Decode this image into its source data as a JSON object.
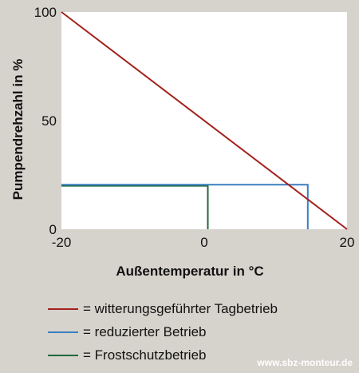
{
  "chart_data": {
    "type": "line",
    "xlabel": "Außentemperatur in °C",
    "ylabel": "Pumpendrehzahl in %",
    "xlim": [
      -20,
      20
    ],
    "ylim": [
      0,
      100
    ],
    "xticks": [
      -20,
      0,
      20
    ],
    "yticks": [
      0,
      50,
      100
    ],
    "xtick_labels": [
      "-20",
      "0",
      "20"
    ],
    "ytick_labels": [
      "0",
      "50",
      "100"
    ],
    "grid": false,
    "series": [
      {
        "name": "witterungsgeführter Tagbetrieb",
        "color": "#a3201c",
        "x": [
          -20,
          20
        ],
        "y": [
          100,
          0
        ]
      },
      {
        "name": "reduzierter Betrieb",
        "color": "#3a7fbf",
        "x": [
          -20,
          14.5,
          14.5
        ],
        "y": [
          20.5,
          20.5,
          0
        ]
      },
      {
        "name": "Frostschutzbetrieb",
        "color": "#1f6a3a",
        "x": [
          -20,
          0.5,
          0.5
        ],
        "y": [
          20,
          20,
          0
        ]
      }
    ]
  },
  "legend": {
    "prefix": "= ",
    "items": [
      {
        "label": "witterungsgeführter Tagbetrieb",
        "color": "#a3201c"
      },
      {
        "label": "reduzierter Betrieb",
        "color": "#3a7fbf"
      },
      {
        "label": "Frostschutzbetrieb",
        "color": "#1f6a3a"
      }
    ]
  },
  "footer": {
    "text": "www.sbz-monteur.de"
  }
}
